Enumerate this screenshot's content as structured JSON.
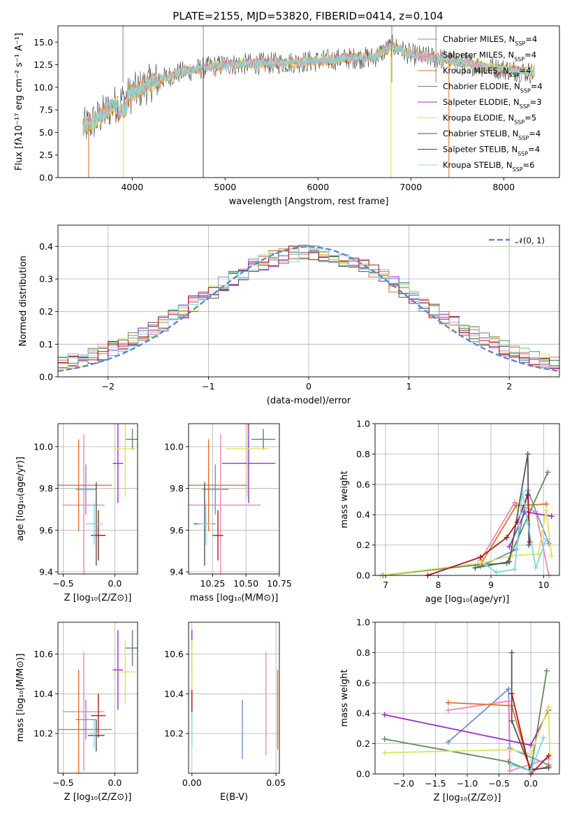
{
  "figure": {
    "title": "PLATE=2155, MJD=53820, FIBERID=0414, z=0.104"
  },
  "colors": {
    "Chabrier MILES": "#7090d0",
    "Salpeter MILES": "#ef85b8",
    "Kroupa MILES": "#e07025",
    "Chabrier ELODIE": "#5f8a5f",
    "Salpeter ELODIE": "#9b30c0",
    "Kroupa ELODIE": "#dce45a",
    "Chabrier STELIB": "#555555",
    "Salpeter STELIB": "#b01818",
    "Kroupa STELIB": "#7bdbe0"
  },
  "chart_data": [
    {
      "id": "spectrum",
      "type": "line",
      "title": "PLATE=2155, MJD=53820, FIBERID=0414, z=0.104",
      "xlabel": "wavelength [Angstrom, rest frame]",
      "ylabel": "Flux [fλ10⁻¹⁷ erg cm⁻² s⁻¹ A⁻¹]",
      "xlim": [
        3200,
        8600
      ],
      "ylim": [
        0,
        16.8
      ],
      "xticks": [
        4000,
        5000,
        6000,
        7000,
        8000
      ],
      "yticks": [
        0.0,
        2.5,
        5.0,
        7.5,
        10.0,
        12.5,
        15.0
      ],
      "legend": "right",
      "data_envelope": {
        "x": [
          3470,
          3600,
          3800,
          4000,
          4200,
          4500,
          4800,
          5000,
          5300,
          5600,
          6000,
          6300,
          6600,
          6800,
          7000,
          7300,
          7600,
          8000,
          8330
        ],
        "y": [
          5.5,
          6.3,
          8.0,
          9.3,
          10.5,
          11.6,
          12.2,
          12.5,
          12.6,
          12.7,
          12.9,
          13.2,
          13.3,
          14.6,
          13.6,
          13.2,
          12.6,
          12.0,
          11.6
        ]
      },
      "series": [
        {
          "name": "Chabrier MILES, N_SSP=4",
          "label_main": "Chabrier MILES, N",
          "label_sub": "SSP",
          "label_tail": "=4"
        },
        {
          "name": "Salpeter MILES, N_SSP=4",
          "label_main": "Salpeter MILES, N",
          "label_sub": "SSP",
          "label_tail": "=4"
        },
        {
          "name": "Kroupa MILES, N_SSP=4",
          "label_main": "Kroupa MILES, N",
          "label_sub": "SSP",
          "label_tail": "=4"
        },
        {
          "name": "Chabrier ELODIE, N_SSP=4",
          "label_main": "Chabrier ELODIE, N",
          "label_sub": "SSP",
          "label_tail": "=4"
        },
        {
          "name": "Salpeter ELODIE, N_SSP=3",
          "label_main": "Salpeter ELODIE, N",
          "label_sub": "SSP",
          "label_tail": "=3"
        },
        {
          "name": "Kroupa ELODIE, N_SSP=5",
          "label_main": "Kroupa ELODIE, N",
          "label_sub": "SSP",
          "label_tail": "=5"
        },
        {
          "name": "Chabrier STELIB, N_SSP=4",
          "label_main": "Chabrier STELIB, N",
          "label_sub": "SSP",
          "label_tail": "=4"
        },
        {
          "name": "Salpeter STELIB, N_SSP=4",
          "label_main": "Salpeter STELIB, N",
          "label_sub": "SSP",
          "label_tail": "=4"
        },
        {
          "name": "Kroupa STELIB, N_SSP=6",
          "label_main": "Kroupa STELIB, N",
          "label_sub": "SSP",
          "label_tail": "=6"
        }
      ]
    },
    {
      "id": "residuals",
      "type": "line",
      "xlabel": "(data-model)/error",
      "ylabel": "Normed distribution",
      "xlim": [
        -2.5,
        2.5
      ],
      "ylim": [
        0,
        0.465
      ],
      "xticks": [
        -2,
        -1,
        0,
        1,
        2
      ],
      "yticks": [
        0.0,
        0.1,
        0.2,
        0.3,
        0.4
      ],
      "grid": true,
      "reference": {
        "name": "N(0,1)",
        "label": "𝒩(0, 1)",
        "color": "#5b86d6",
        "style": "dashed"
      },
      "histogram_bins": {
        "start": -2.5,
        "width": 0.1
      },
      "histogram_profile_peak": 0.37
    },
    {
      "id": "age-vs-Z",
      "type": "scatter",
      "xlabel": "Z [log₁₀(Z/Z⊙)]",
      "ylabel": "age  [log₁₀(age/yr)]",
      "xlim": [
        -0.55,
        0.22
      ],
      "ylim": [
        9.39,
        10.11
      ],
      "xticks": [
        -0.5,
        0.0
      ],
      "yticks": [
        9.4,
        9.6,
        9.8,
        10.0
      ],
      "grid": true,
      "points": [
        {
          "model": "Chabrier MILES",
          "x": -0.28,
          "y": 9.795,
          "xerr": 0.1,
          "yerr": 0.12
        },
        {
          "model": "Salpeter MILES",
          "x": -0.3,
          "y": 9.72,
          "xerr": 0.2,
          "yerr": 0.34
        },
        {
          "model": "Kroupa MILES",
          "x": -0.35,
          "y": 9.815,
          "xerr": 0.32,
          "yerr": 0.22
        },
        {
          "model": "Chabrier ELODIE",
          "x": 0.17,
          "y": 10.035,
          "xerr": 0.07,
          "yerr": 0.05
        },
        {
          "model": "Salpeter ELODIE",
          "x": 0.03,
          "y": 9.92,
          "xerr": 0.05,
          "yerr": 0.19
        },
        {
          "model": "Kroupa ELODIE",
          "x": 0.1,
          "y": 9.99,
          "xerr": 0.1,
          "yerr": 0.23
        },
        {
          "model": "Chabrier STELIB",
          "x": -0.18,
          "y": 9.63,
          "xerr": 0.02,
          "yerr": 0.2
        },
        {
          "model": "Salpeter STELIB",
          "x": -0.16,
          "y": 9.575,
          "xerr": 0.07,
          "yerr": 0.12
        },
        {
          "model": "Kroupa STELIB",
          "x": -0.2,
          "y": 9.63,
          "xerr": 0.08,
          "yerr": 0.1
        }
      ]
    },
    {
      "id": "age-vs-mass",
      "type": "scatter",
      "xlabel": "mass [log₁₀(M/M⊙)]",
      "ylabel": "",
      "xlim": [
        10.07,
        10.75
      ],
      "ylim": [
        9.39,
        10.11
      ],
      "xticks": [
        10.25,
        10.5,
        10.75
      ],
      "yticks": [
        9.4,
        9.6,
        9.8,
        10.0
      ],
      "grid": true,
      "points": [
        {
          "model": "Chabrier MILES",
          "x": 10.27,
          "y": 9.795,
          "xerr": 0.1,
          "yerr": 0.12
        },
        {
          "model": "Salpeter MILES",
          "x": 10.31,
          "y": 9.72,
          "xerr": 0.3,
          "yerr": 0.34
        },
        {
          "model": "Kroupa MILES",
          "x": 10.22,
          "y": 9.815,
          "xerr": 0.3,
          "yerr": 0.22
        },
        {
          "model": "Chabrier ELODIE",
          "x": 10.63,
          "y": 10.035,
          "xerr": 0.09,
          "yerr": 0.05
        },
        {
          "model": "Salpeter ELODIE",
          "x": 10.52,
          "y": 9.92,
          "xerr": 0.2,
          "yerr": 0.19
        },
        {
          "model": "Kroupa ELODIE",
          "x": 10.51,
          "y": 9.99,
          "xerr": 0.16,
          "yerr": 0.23
        },
        {
          "model": "Chabrier STELIB",
          "x": 10.19,
          "y": 9.63,
          "xerr": 0.08,
          "yerr": 0.2
        },
        {
          "model": "Salpeter STELIB",
          "x": 10.29,
          "y": 9.575,
          "xerr": 0.04,
          "yerr": 0.12
        },
        {
          "model": "Kroupa STELIB",
          "x": 10.2,
          "y": 9.63,
          "xerr": 0.06,
          "yerr": 0.1
        }
      ]
    },
    {
      "id": "mass-weight-vs-age",
      "type": "line",
      "xlabel": "age  [log₁₀(age/yr)]",
      "ylabel": "mass weight",
      "xlim": [
        6.8,
        10.3
      ],
      "ylim": [
        0,
        1
      ],
      "xticks": [
        7,
        8,
        9,
        10
      ],
      "yticks": [
        0.0,
        0.2,
        0.4,
        0.6,
        0.8,
        1.0
      ],
      "grid": true,
      "series": [
        {
          "model": "Chabrier MILES",
          "points": [
            [
              8.8,
              0.06
            ],
            [
              9.48,
              0.17
            ],
            [
              9.7,
              0.56
            ],
            [
              10.1,
              0.21
            ]
          ]
        },
        {
          "model": "Salpeter MILES",
          "points": [
            [
              8.8,
              0.1
            ],
            [
              9.45,
              0.48
            ],
            [
              9.85,
              0.42
            ],
            [
              10.1,
              0.0
            ]
          ]
        },
        {
          "model": "Kroupa MILES",
          "points": [
            [
              8.8,
              0.07
            ],
            [
              9.48,
              0.46
            ],
            [
              10.05,
              0.47
            ]
          ]
        },
        {
          "model": "Chabrier ELODIE",
          "points": [
            [
              6.95,
              0.0
            ],
            [
              8.75,
              0.07
            ],
            [
              9.3,
              0.08
            ],
            [
              10.08,
              0.68
            ]
          ]
        },
        {
          "model": "Salpeter ELODIE",
          "points": [
            [
              9.35,
              0.19
            ],
            [
              9.65,
              0.42
            ],
            [
              10.15,
              0.39
            ]
          ]
        },
        {
          "model": "Kroupa ELODIE",
          "points": [
            [
              6.9,
              0.0
            ],
            [
              8.8,
              0.08
            ],
            [
              9.4,
              0.13
            ],
            [
              9.9,
              0.14
            ],
            [
              10.05,
              0.43
            ],
            [
              10.15,
              0.13
            ]
          ]
        },
        {
          "model": "Chabrier STELIB",
          "points": [
            [
              8.7,
              0.05
            ],
            [
              9.35,
              0.09
            ],
            [
              9.7,
              0.8
            ],
            [
              9.72,
              0.2
            ]
          ]
        },
        {
          "model": "Salpeter STELIB",
          "points": [
            [
              7.8,
              0.0
            ],
            [
              8.8,
              0.12
            ],
            [
              9.3,
              0.25
            ],
            [
              9.5,
              0.35
            ],
            [
              9.7,
              0.53
            ],
            [
              9.74,
              0.22
            ]
          ]
        },
        {
          "model": "Kroupa STELIB",
          "points": [
            [
              8.9,
              0.07
            ],
            [
              9.1,
              0.02
            ],
            [
              9.45,
              0.04
            ],
            [
              9.6,
              0.55
            ],
            [
              9.7,
              0.35
            ],
            [
              9.85,
              0.05
            ],
            [
              10.05,
              0.24
            ]
          ]
        }
      ]
    },
    {
      "id": "mass-vs-Z",
      "type": "scatter",
      "xlabel": "Z [log₁₀(Z/Z⊙)]",
      "ylabel": "mass [log₁₀(M/M⊙)]",
      "xlim": [
        -0.55,
        0.22
      ],
      "ylim": [
        10.0,
        10.76
      ],
      "xticks": [
        -0.5,
        0.0
      ],
      "yticks": [
        10.2,
        10.4,
        10.6
      ],
      "grid": true,
      "points": [
        {
          "model": "Chabrier MILES",
          "x": -0.28,
          "y": 10.27,
          "xerr": 0.1,
          "yerr": 0.1
        },
        {
          "model": "Salpeter MILES",
          "x": -0.3,
          "y": 10.31,
          "xerr": 0.2,
          "yerr": 0.3
        },
        {
          "model": "Kroupa MILES",
          "x": -0.35,
          "y": 10.22,
          "xerr": 0.32,
          "yerr": 0.3
        },
        {
          "model": "Chabrier ELODIE",
          "x": 0.17,
          "y": 10.63,
          "xerr": 0.07,
          "yerr": 0.09
        },
        {
          "model": "Salpeter ELODIE",
          "x": 0.03,
          "y": 10.52,
          "xerr": 0.05,
          "yerr": 0.2
        },
        {
          "model": "Kroupa ELODIE",
          "x": 0.1,
          "y": 10.51,
          "xerr": 0.1,
          "yerr": 0.16
        },
        {
          "model": "Chabrier STELIB",
          "x": -0.18,
          "y": 10.19,
          "xerr": 0.08,
          "yerr": 0.08
        },
        {
          "model": "Salpeter STELIB",
          "x": -0.16,
          "y": 10.29,
          "xerr": 0.07,
          "yerr": 0.11
        },
        {
          "model": "Kroupa STELIB",
          "x": -0.2,
          "y": 10.2,
          "xerr": 0.04,
          "yerr": 0.07
        }
      ]
    },
    {
      "id": "mass-vs-ebv",
      "type": "scatter",
      "xlabel": "E(B-V)",
      "ylabel": "",
      "xlim": [
        -0.002,
        0.052
      ],
      "ylim": [
        10.0,
        10.76
      ],
      "xticks": [
        0.0,
        0.05
      ],
      "yticks": [
        10.2,
        10.4,
        10.6
      ],
      "grid": true,
      "points": [
        {
          "model": "Chabrier MILES",
          "x": 0.03,
          "y": 10.22,
          "xerr": 0,
          "yerr": 0.15
        },
        {
          "model": "Salpeter MILES",
          "x": 0.044,
          "y": 10.35,
          "xerr": 0,
          "yerr": 0.26
        },
        {
          "model": "Kroupa MILES",
          "x": 0.051,
          "y": 10.32,
          "xerr": 0,
          "yerr": 0.2
        },
        {
          "model": "Chabrier ELODIE",
          "x": 0.0,
          "y": 10.62,
          "xerr": 0,
          "yerr": 0.1
        },
        {
          "model": "Salpeter ELODIE",
          "x": 0.0,
          "y": 10.6,
          "xerr": 0,
          "yerr": 0.12
        },
        {
          "model": "Kroupa ELODIE",
          "x": 0.0,
          "y": 10.45,
          "xerr": 0,
          "yerr": 0.22
        },
        {
          "model": "Chabrier STELIB",
          "x": 0.0,
          "y": 10.35,
          "xerr": 0,
          "yerr": 0.06
        },
        {
          "model": "Salpeter STELIB",
          "x": 0.0,
          "y": 10.35,
          "xerr": 0,
          "yerr": 0.07
        },
        {
          "model": "Kroupa STELIB",
          "x": 0.0,
          "y": 10.22,
          "xerr": 0,
          "yerr": 0.09
        }
      ]
    },
    {
      "id": "mass-weight-vs-Z",
      "type": "line",
      "xlabel": "Z [log₁₀(Z/Z⊙)]",
      "ylabel": "mass weight",
      "xlim": [
        -2.45,
        0.45
      ],
      "ylim": [
        0,
        1
      ],
      "xticks": [
        -2.0,
        -1.5,
        -1.0,
        -0.5,
        0.0
      ],
      "yticks": [
        0.0,
        0.2,
        0.4,
        0.6,
        0.8,
        1.0
      ],
      "grid": true,
      "series": [
        {
          "model": "Chabrier MILES",
          "points": [
            [
              -1.3,
              0.21
            ],
            [
              -0.35,
              0.56
            ],
            [
              -0.33,
              0.17
            ],
            [
              0.28,
              0.06
            ]
          ]
        },
        {
          "model": "Salpeter MILES",
          "points": [
            [
              -1.3,
              0.42
            ],
            [
              -0.35,
              0.48
            ],
            [
              -0.33,
              0.02
            ],
            [
              0.28,
              0.1
            ]
          ]
        },
        {
          "model": "Kroupa MILES",
          "points": [
            [
              -1.3,
              0.47
            ],
            [
              -0.3,
              0.45
            ],
            [
              0.0,
              0.02
            ],
            [
              0.28,
              0.05
            ]
          ]
        },
        {
          "model": "Chabrier ELODIE",
          "points": [
            [
              -2.3,
              0.23
            ],
            [
              -0.35,
              0.08
            ],
            [
              0.0,
              0.02
            ],
            [
              0.25,
              0.68
            ]
          ]
        },
        {
          "model": "Salpeter ELODIE",
          "points": [
            [
              -2.3,
              0.39
            ],
            [
              0.0,
              0.19
            ],
            [
              0.28,
              0.42
            ]
          ]
        },
        {
          "model": "Kroupa ELODIE",
          "points": [
            [
              -2.3,
              0.14
            ],
            [
              -0.3,
              0.16
            ],
            [
              0.0,
              0.13
            ],
            [
              0.28,
              0.44
            ],
            [
              0.3,
              0.13
            ]
          ]
        },
        {
          "model": "Chabrier STELIB",
          "points": [
            [
              -0.3,
              0.8
            ],
            [
              -0.3,
              0.35
            ],
            [
              0.0,
              0.03
            ],
            [
              0.28,
              0.04
            ]
          ]
        },
        {
          "model": "Salpeter STELIB",
          "points": [
            [
              -0.3,
              0.53
            ],
            [
              0.0,
              0.0
            ],
            [
              0.28,
              0.12
            ]
          ]
        },
        {
          "model": "Kroupa STELIB",
          "points": [
            [
              -0.3,
              0.06
            ],
            [
              0.0,
              0.02
            ],
            [
              0.2,
              0.24
            ]
          ]
        }
      ]
    }
  ]
}
